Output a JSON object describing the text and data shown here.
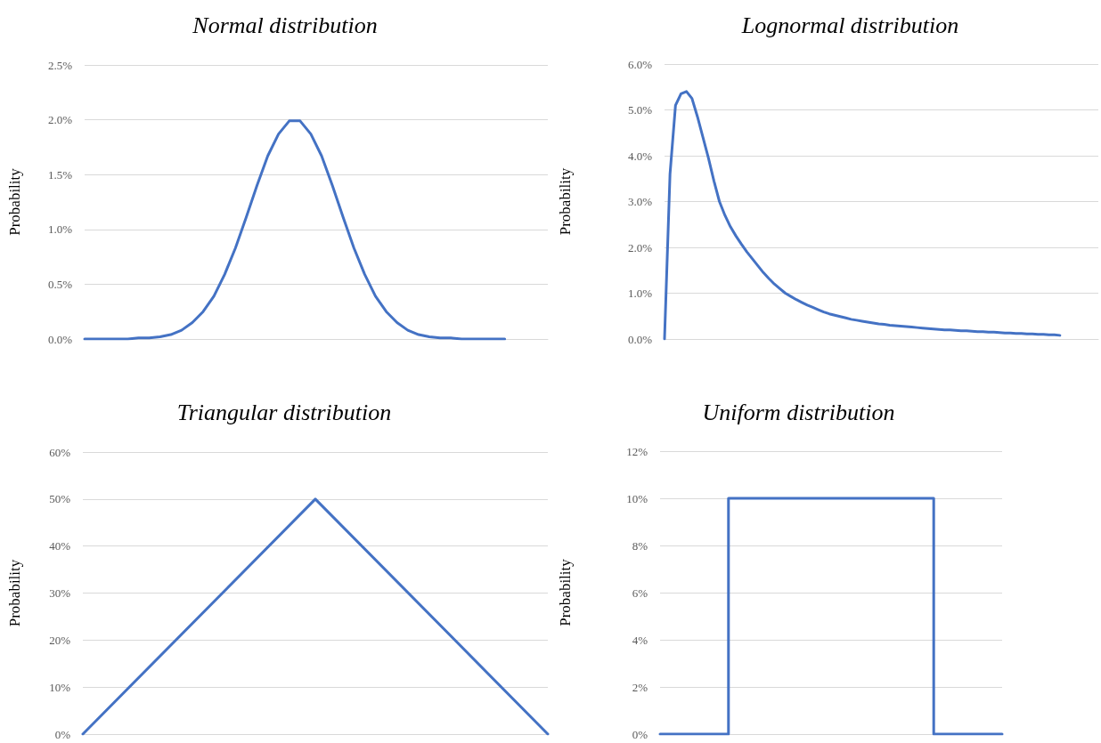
{
  "chart_data": [
    {
      "type": "line",
      "title": "Normal distribution",
      "ylabel": "Probability",
      "categories": [
        null,
        null,
        null,
        null,
        null,
        null,
        null,
        null,
        null,
        null,
        null,
        null,
        null,
        null,
        null,
        null,
        null,
        null,
        null,
        null,
        null,
        null,
        null,
        null,
        null,
        null,
        null,
        null,
        null,
        null,
        null,
        null,
        null,
        null,
        null,
        null,
        null,
        null,
        null,
        null,
        null,
        null,
        null,
        null
      ],
      "series": [
        {
          "color": "#4472c4",
          "values": [
            0,
            0,
            0,
            0,
            0,
            0.01,
            0.01,
            0.02,
            0.04,
            0.08,
            0.15,
            0.25,
            0.39,
            0.59,
            0.83,
            1.11,
            1.4,
            1.67,
            1.87,
            1.99,
            1.99,
            1.87,
            1.67,
            1.4,
            1.11,
            0.83,
            0.59,
            0.39,
            0.25,
            0.15,
            0.08,
            0.04,
            0.02,
            0.01,
            0.01,
            0,
            0,
            0,
            0,
            0,
            null,
            null,
            null,
            null
          ]
        }
      ],
      "ylim": [
        0,
        2.5
      ],
      "yticks": [
        {
          "value": 0,
          "label": "0.0%"
        },
        {
          "value": 0.5,
          "label": "0.5%"
        },
        {
          "value": 1,
          "label": "1.0%"
        },
        {
          "value": 1.5,
          "label": "1.5%"
        },
        {
          "value": 2,
          "label": "2.0%"
        },
        {
          "value": 2.5,
          "label": "2.5%"
        }
      ],
      "grid": "y",
      "marker": "none"
    },
    {
      "type": "line",
      "title": "Lognormal distribution",
      "ylabel": "Probability",
      "categories": [
        null,
        null,
        null,
        null,
        null,
        null,
        null,
        null,
        null,
        null,
        null,
        null,
        null,
        null,
        null,
        null,
        null,
        null,
        null,
        null,
        null,
        null,
        null,
        null,
        null,
        null,
        null,
        null,
        null,
        null,
        null,
        null,
        null,
        null,
        null,
        null,
        null,
        null,
        null,
        null,
        null,
        null,
        null,
        null,
        null,
        null,
        null,
        null,
        null,
        null,
        null,
        null,
        null,
        null,
        null,
        null,
        null,
        null,
        null,
        null,
        null,
        null,
        null,
        null,
        null,
        null,
        null,
        null,
        null,
        null,
        null,
        null,
        null,
        null,
        null,
        null,
        null,
        null,
        null,
        null
      ],
      "series": [
        {
          "color": "#4472c4",
          "values": [
            0,
            3.6,
            5.1,
            5.35,
            5.4,
            5.25,
            4.85,
            4.4,
            3.95,
            3.45,
            3.0,
            2.7,
            2.45,
            2.25,
            2.07,
            1.9,
            1.75,
            1.6,
            1.45,
            1.32,
            1.2,
            1.1,
            1.0,
            0.93,
            0.86,
            0.8,
            0.74,
            0.69,
            0.64,
            0.59,
            0.55,
            0.52,
            0.49,
            0.46,
            0.43,
            0.41,
            0.39,
            0.37,
            0.35,
            0.33,
            0.32,
            0.3,
            0.29,
            0.28,
            0.27,
            0.26,
            0.25,
            0.24,
            0.23,
            0.22,
            0.21,
            0.2,
            0.2,
            0.19,
            0.18,
            0.18,
            0.17,
            0.16,
            0.16,
            0.15,
            0.15,
            0.14,
            0.13,
            0.13,
            0.12,
            0.12,
            0.11,
            0.11,
            0.1,
            0.1,
            0.09,
            0.09,
            0.08,
            null,
            null,
            null,
            null,
            null,
            null,
            null
          ]
        }
      ],
      "ylim": [
        0,
        6
      ],
      "yticks": [
        {
          "value": 0,
          "label": "0.0%"
        },
        {
          "value": 1,
          "label": "1.0%"
        },
        {
          "value": 2,
          "label": "2.0%"
        },
        {
          "value": 3,
          "label": "3.0%"
        },
        {
          "value": 4,
          "label": "4.0%"
        },
        {
          "value": 5,
          "label": "5.0%"
        },
        {
          "value": 6,
          "label": "6.0%"
        }
      ],
      "grid": "y",
      "marker": "none"
    },
    {
      "type": "line",
      "title": "Triangular distribution",
      "ylabel": "Probability",
      "categories": [
        null,
        null,
        null
      ],
      "series": [
        {
          "color": "#4472c4",
          "values": [
            0,
            50,
            0
          ]
        }
      ],
      "ylim": [
        0,
        60
      ],
      "yticks": [
        {
          "value": 0,
          "label": "0%"
        },
        {
          "value": 10,
          "label": "10%"
        },
        {
          "value": 20,
          "label": "20%"
        },
        {
          "value": 30,
          "label": "30%"
        },
        {
          "value": 40,
          "label": "40%"
        },
        {
          "value": 50,
          "label": "50%"
        },
        {
          "value": 60,
          "label": "60%"
        }
      ],
      "grid": "y",
      "marker": "none"
    },
    {
      "type": "step",
      "title": "Uniform distribution",
      "ylabel": "Probability",
      "categories": [
        null,
        null,
        null,
        null,
        null,
        null,
        null,
        null,
        null,
        null,
        null
      ],
      "series": [
        {
          "color": "#4472c4",
          "values": [
            0,
            0,
            0,
            10,
            10,
            10,
            10,
            10,
            10,
            0,
            0
          ]
        }
      ],
      "ylim": [
        0,
        12
      ],
      "yticks": [
        {
          "value": 0,
          "label": "0%"
        },
        {
          "value": 2,
          "label": "2%"
        },
        {
          "value": 4,
          "label": "4%"
        },
        {
          "value": 6,
          "label": "6%"
        },
        {
          "value": 8,
          "label": "8%"
        },
        {
          "value": 10,
          "label": "10%"
        },
        {
          "value": 12,
          "label": "12%"
        }
      ],
      "grid": "y",
      "marker": "none"
    }
  ]
}
